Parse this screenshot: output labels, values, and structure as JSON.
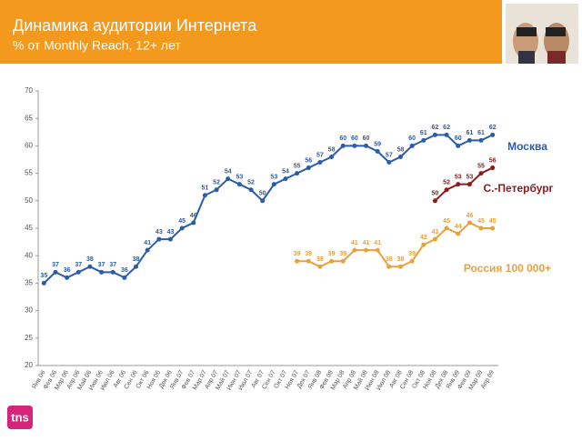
{
  "chart_data": {
    "type": "line",
    "title": "Динамика аудитории Интернета",
    "subtitle": "% от Monthly Reach, 12+ лет",
    "logo": "tns",
    "categories": [
      "Янв 06",
      "Фев 06",
      "Мар 06",
      "Апр 06",
      "Май 06",
      "Июн 06",
      "Июл 06",
      "Авг 06",
      "Сен 06",
      "Окт 06",
      "Ноя 06",
      "Дек 06",
      "Янв 07",
      "Фев 07",
      "Мар 07",
      "Апр 07",
      "Май 07",
      "Июн 07",
      "Июл 07",
      "Авг 07",
      "Сен 07",
      "Окт 07",
      "Ноя 07",
      "Дек 07",
      "Янв 08",
      "Фев 08",
      "Мар 08",
      "Апр 08",
      "Май 08",
      "Июн 08",
      "Июл 08",
      "Авг 08",
      "Сен 08",
      "Окт 08",
      "Ноя 08",
      "Дек 08",
      "Янв 09",
      "Фев 09",
      "Мар 09",
      "Апр 09"
    ],
    "series": [
      {
        "name": "Москва",
        "color": "#2b5ca8",
        "values": [
          35,
          37,
          36,
          37,
          38,
          37,
          37,
          36,
          38,
          41,
          43,
          43,
          45,
          46,
          51,
          52,
          54,
          53,
          52,
          50,
          53,
          54,
          55,
          56,
          57,
          58,
          60,
          60,
          60,
          59,
          57,
          58,
          60,
          61,
          62,
          62,
          60,
          61,
          61,
          62
        ]
      },
      {
        "name": "С.-Петербург",
        "color": "#8b1c1c",
        "values": [
          null,
          null,
          null,
          null,
          null,
          null,
          null,
          null,
          null,
          null,
          null,
          null,
          null,
          null,
          null,
          null,
          null,
          null,
          null,
          null,
          null,
          null,
          null,
          null,
          null,
          null,
          null,
          null,
          null,
          null,
          null,
          null,
          null,
          null,
          50,
          52,
          53,
          53,
          55,
          56
        ]
      },
      {
        "name": "Россия 100 000+",
        "color": "#e8a23c",
        "values": [
          null,
          null,
          null,
          null,
          null,
          null,
          null,
          null,
          null,
          null,
          null,
          null,
          null,
          null,
          null,
          null,
          null,
          null,
          null,
          null,
          null,
          null,
          39,
          39,
          38,
          39,
          39,
          41,
          41,
          41,
          38,
          38,
          39,
          42,
          43,
          45,
          44,
          46,
          45,
          45
        ]
      }
    ],
    "ylim": [
      20,
      70
    ],
    "yticks": [
      20,
      25,
      30,
      35,
      40,
      45,
      50,
      55,
      60,
      65,
      70
    ]
  }
}
